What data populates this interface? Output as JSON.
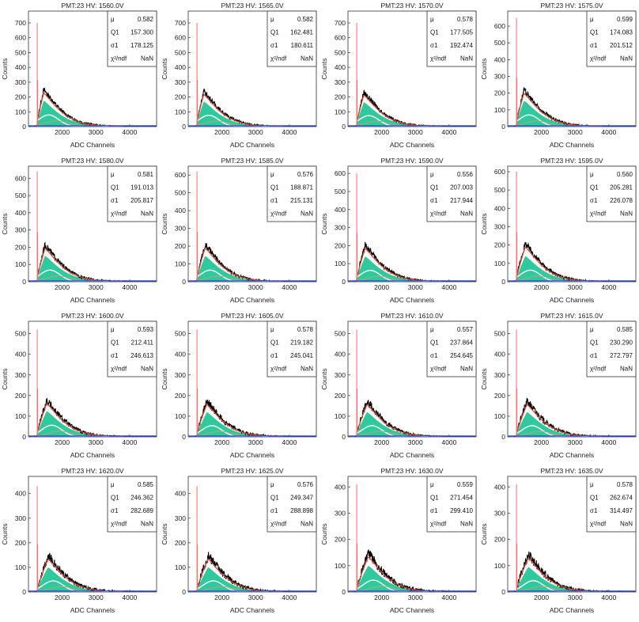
{
  "chart_data": [
    {
      "type": "histogram",
      "title": "PMT:23 HV: 1560.0V",
      "xlabel": "ADC Channels",
      "ylabel": "Counts",
      "xlim": [
        1000,
        4800
      ],
      "ylim": [
        0,
        780
      ],
      "yticks": [
        0,
        100,
        200,
        300,
        400,
        500,
        600,
        700
      ],
      "xticks": [
        2000,
        3000,
        4000
      ],
      "spike_height": 700,
      "peak": {
        "x": 1450,
        "y": 245
      },
      "fit_peak": 175,
      "stats": {
        "mu_label": "μ",
        "mu": "0.582",
        "q1_label": "Q1",
        "q1": "157.300",
        "s1_label": "σ1",
        "s1": "178.125",
        "chi_label": "χ²/ndf",
        "chi": "NaN"
      }
    },
    {
      "type": "histogram",
      "title": "PMT:23 HV: 1565.0V",
      "xlabel": "ADC Channels",
      "ylabel": "Counts",
      "xlim": [
        1000,
        4800
      ],
      "ylim": [
        0,
        780
      ],
      "yticks": [
        0,
        100,
        200,
        300,
        400,
        500,
        600,
        700
      ],
      "xticks": [
        2000,
        3000,
        4000
      ],
      "spike_height": 700,
      "peak": {
        "x": 1460,
        "y": 235
      },
      "fit_peak": 170,
      "stats": {
        "mu_label": "μ",
        "mu": "0.582",
        "q1_label": "Q1",
        "q1": "162.481",
        "s1_label": "σ1",
        "s1": "180.611",
        "chi_label": "χ²/ndf",
        "chi": "NaN"
      }
    },
    {
      "type": "histogram",
      "title": "PMT:23 HV: 1570.0V",
      "xlabel": "ADC Channels",
      "ylabel": "Counts",
      "xlim": [
        1000,
        4800
      ],
      "ylim": [
        0,
        780
      ],
      "yticks": [
        0,
        100,
        200,
        300,
        400,
        500,
        600,
        700
      ],
      "xticks": [
        2000,
        3000,
        4000
      ],
      "spike_height": 700,
      "peak": {
        "x": 1470,
        "y": 230
      },
      "fit_peak": 165,
      "stats": {
        "mu_label": "μ",
        "mu": "0.578",
        "q1_label": "Q1",
        "q1": "177.505",
        "s1_label": "σ1",
        "s1": "192.474",
        "chi_label": "χ²/ndf",
        "chi": "NaN"
      }
    },
    {
      "type": "histogram",
      "title": "PMT:23 HV: 1575.0V",
      "xlabel": "ADC Channels",
      "ylabel": "Counts",
      "xlim": [
        1000,
        4800
      ],
      "ylim": [
        0,
        690
      ],
      "yticks": [
        0,
        100,
        200,
        300,
        400,
        500,
        600
      ],
      "xticks": [
        2000,
        3000,
        4000
      ],
      "spike_height": 650,
      "peak": {
        "x": 1480,
        "y": 215
      },
      "fit_peak": 155,
      "stats": {
        "mu_label": "μ",
        "mu": "0.599",
        "q1_label": "Q1",
        "q1": "174.083",
        "s1_label": "σ1",
        "s1": "201.512",
        "chi_label": "χ²/ndf",
        "chi": "NaN"
      }
    },
    {
      "type": "histogram",
      "title": "PMT:23 HV: 1580.0V",
      "xlabel": "ADC Channels",
      "ylabel": "Counts",
      "xlim": [
        1000,
        4800
      ],
      "ylim": [
        0,
        670
      ],
      "yticks": [
        0,
        100,
        200,
        300,
        400,
        500,
        600
      ],
      "xticks": [
        2000,
        3000,
        4000
      ],
      "spike_height": 640,
      "peak": {
        "x": 1490,
        "y": 210
      },
      "fit_peak": 150,
      "stats": {
        "mu_label": "μ",
        "mu": "0.581",
        "q1_label": "Q1",
        "q1": "191.013",
        "s1_label": "σ1",
        "s1": "205.817",
        "chi_label": "χ²/ndf",
        "chi": "NaN"
      }
    },
    {
      "type": "histogram",
      "title": "PMT:23 HV: 1585.0V",
      "xlabel": "ADC Channels",
      "ylabel": "Counts",
      "xlim": [
        1000,
        4800
      ],
      "ylim": [
        0,
        650
      ],
      "yticks": [
        0,
        100,
        200,
        300,
        400,
        500,
        600
      ],
      "xticks": [
        2000,
        3000,
        4000
      ],
      "spike_height": 620,
      "peak": {
        "x": 1500,
        "y": 205
      },
      "fit_peak": 145,
      "stats": {
        "mu_label": "μ",
        "mu": "0.576",
        "q1_label": "Q1",
        "q1": "188.871",
        "s1_label": "σ1",
        "s1": "215.131",
        "chi_label": "χ²/ndf",
        "chi": "NaN"
      }
    },
    {
      "type": "histogram",
      "title": "PMT:23 HV: 1590.0V",
      "xlabel": "ADC Channels",
      "ylabel": "Counts",
      "xlim": [
        1000,
        4800
      ],
      "ylim": [
        0,
        640
      ],
      "yticks": [
        0,
        100,
        200,
        300,
        400,
        500,
        600
      ],
      "xticks": [
        2000,
        3000,
        4000
      ],
      "spike_height": 600,
      "peak": {
        "x": 1510,
        "y": 200
      },
      "fit_peak": 140,
      "stats": {
        "mu_label": "μ",
        "mu": "0.556",
        "q1_label": "Q1",
        "q1": "207.003",
        "s1_label": "σ1",
        "s1": "217.944",
        "chi_label": "χ²/ndf",
        "chi": "NaN"
      }
    },
    {
      "type": "histogram",
      "title": "PMT:23 HV: 1595.0V",
      "xlabel": "ADC Channels",
      "ylabel": "Counts",
      "xlim": [
        1000,
        4800
      ],
      "ylim": [
        0,
        630
      ],
      "yticks": [
        0,
        100,
        200,
        300,
        400,
        500,
        600
      ],
      "xticks": [
        2000,
        3000,
        4000
      ],
      "spike_height": 600,
      "peak": {
        "x": 1520,
        "y": 205
      },
      "fit_peak": 140,
      "stats": {
        "mu_label": "μ",
        "mu": "0.560",
        "q1_label": "Q1",
        "q1": "205.281",
        "s1_label": "σ1",
        "s1": "226.078",
        "chi_label": "χ²/ndf",
        "chi": "NaN"
      }
    },
    {
      "type": "histogram",
      "title": "PMT:23 HV: 1600.0V",
      "xlabel": "ADC Channels",
      "ylabel": "Counts",
      "xlim": [
        1000,
        4800
      ],
      "ylim": [
        0,
        560
      ],
      "yticks": [
        0,
        100,
        200,
        300,
        400,
        500
      ],
      "xticks": [
        2000,
        3000,
        4000
      ],
      "spike_height": 520,
      "peak": {
        "x": 1540,
        "y": 175
      },
      "fit_peak": 125,
      "stats": {
        "mu_label": "μ",
        "mu": "0.593",
        "q1_label": "Q1",
        "q1": "212.411",
        "s1_label": "σ1",
        "s1": "246.613",
        "chi_label": "χ²/ndf",
        "chi": "NaN"
      }
    },
    {
      "type": "histogram",
      "title": "PMT:23 HV: 1605.0V",
      "xlabel": "ADC Channels",
      "ylabel": "Counts",
      "xlim": [
        1000,
        4800
      ],
      "ylim": [
        0,
        560
      ],
      "yticks": [
        0,
        100,
        200,
        300,
        400,
        500
      ],
      "xticks": [
        2000,
        3000,
        4000
      ],
      "spike_height": 520,
      "peak": {
        "x": 1550,
        "y": 170
      },
      "fit_peak": 120,
      "stats": {
        "mu_label": "μ",
        "mu": "0.578",
        "q1_label": "Q1",
        "q1": "219.182",
        "s1_label": "σ1",
        "s1": "245.041",
        "chi_label": "χ²/ndf",
        "chi": "NaN"
      }
    },
    {
      "type": "histogram",
      "title": "PMT:23 HV: 1610.0V",
      "xlabel": "ADC Channels",
      "ylabel": "Counts",
      "xlim": [
        1000,
        4800
      ],
      "ylim": [
        0,
        560
      ],
      "yticks": [
        0,
        100,
        200,
        300,
        400,
        500
      ],
      "xticks": [
        2000,
        3000,
        4000
      ],
      "spike_height": 520,
      "peak": {
        "x": 1560,
        "y": 170
      },
      "fit_peak": 120,
      "stats": {
        "mu_label": "μ",
        "mu": "0.557",
        "q1_label": "Q1",
        "q1": "237.864",
        "s1_label": "σ1",
        "s1": "254.645",
        "chi_label": "χ²/ndf",
        "chi": "NaN"
      }
    },
    {
      "type": "histogram",
      "title": "PMT:23 HV: 1615.0V",
      "xlabel": "ADC Channels",
      "ylabel": "Counts",
      "xlim": [
        1000,
        4800
      ],
      "ylim": [
        0,
        560
      ],
      "yticks": [
        0,
        100,
        200,
        300,
        400,
        500
      ],
      "xticks": [
        2000,
        3000,
        4000
      ],
      "spike_height": 520,
      "peak": {
        "x": 1570,
        "y": 170
      },
      "fit_peak": 120,
      "stats": {
        "mu_label": "μ",
        "mu": "0.585",
        "q1_label": "Q1",
        "q1": "230.290",
        "s1_label": "σ1",
        "s1": "272.797",
        "chi_label": "χ²/ndf",
        "chi": "NaN"
      }
    },
    {
      "type": "histogram",
      "title": "PMT:23 HV: 1620.0V",
      "xlabel": "ADC Channels",
      "ylabel": "Counts",
      "xlim": [
        1000,
        4800
      ],
      "ylim": [
        0,
        470
      ],
      "yticks": [
        0,
        100,
        200,
        300,
        400
      ],
      "xticks": [
        2000,
        3000,
        4000
      ],
      "spike_height": 430,
      "peak": {
        "x": 1580,
        "y": 145
      },
      "fit_peak": 100,
      "stats": {
        "mu_label": "μ",
        "mu": "0.585",
        "q1_label": "Q1",
        "q1": "246.362",
        "s1_label": "σ1",
        "s1": "282.689",
        "chi_label": "χ²/ndf",
        "chi": "NaN"
      }
    },
    {
      "type": "histogram",
      "title": "PMT:23 HV: 1625.0V",
      "xlabel": "ADC Channels",
      "ylabel": "Counts",
      "xlim": [
        1000,
        4800
      ],
      "ylim": [
        0,
        470
      ],
      "yticks": [
        0,
        100,
        200,
        300,
        400
      ],
      "xticks": [
        2000,
        3000,
        4000
      ],
      "spike_height": 430,
      "peak": {
        "x": 1590,
        "y": 145
      },
      "fit_peak": 100,
      "stats": {
        "mu_label": "μ",
        "mu": "0.576",
        "q1_label": "Q1",
        "q1": "249.347",
        "s1_label": "σ1",
        "s1": "288.898",
        "chi_label": "χ²/ndf",
        "chi": "NaN"
      }
    },
    {
      "type": "histogram",
      "title": "PMT:23 HV: 1630.0V",
      "xlabel": "ADC Channels",
      "ylabel": "Counts",
      "xlim": [
        1000,
        4800
      ],
      "ylim": [
        0,
        440
      ],
      "yticks": [
        0,
        100,
        200,
        300,
        400
      ],
      "xticks": [
        2000,
        3000,
        4000
      ],
      "spike_height": 410,
      "peak": {
        "x": 1600,
        "y": 145
      },
      "fit_peak": 100,
      "stats": {
        "mu_label": "μ",
        "mu": "0.559",
        "q1_label": "Q1",
        "q1": "271.454",
        "s1_label": "σ1",
        "s1": "299.410",
        "chi_label": "χ²/ndf",
        "chi": "NaN"
      }
    },
    {
      "type": "histogram",
      "title": "PMT:23 HV: 1635.0V",
      "xlabel": "ADC Channels",
      "ylabel": "Counts",
      "xlim": [
        1000,
        4800
      ],
      "ylim": [
        0,
        440
      ],
      "yticks": [
        0,
        100,
        200,
        300,
        400
      ],
      "xticks": [
        2000,
        3000,
        4000
      ],
      "spike_height": 410,
      "peak": {
        "x": 1610,
        "y": 140
      },
      "fit_peak": 95,
      "stats": {
        "mu_label": "μ",
        "mu": "0.578",
        "q1_label": "Q1",
        "q1": "262.674",
        "s1_label": "σ1",
        "s1": "314.497",
        "chi_label": "χ²/ndf",
        "chi": "NaN"
      }
    }
  ],
  "colors": {
    "data": "#000000",
    "fit": "#e0482b",
    "signal": "#2ec99d",
    "gauss": "#ffffff",
    "pedestal": "#3a57c8",
    "spike": "#ff6a6a",
    "component": "#c8a070"
  }
}
